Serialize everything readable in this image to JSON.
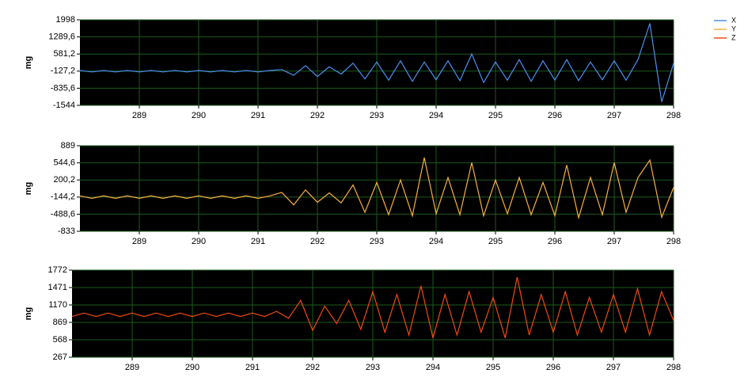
{
  "chart_data": [
    {
      "type": "line",
      "y_label": "mg",
      "x": [
        288.0,
        288.2,
        288.4,
        288.6,
        288.8,
        289.0,
        289.2,
        289.4,
        289.6,
        289.8,
        290.0,
        290.2,
        290.4,
        290.6,
        290.8,
        291.0,
        291.2,
        291.4,
        291.6,
        291.8,
        292.0,
        292.2,
        292.4,
        292.6,
        292.8,
        293.0,
        293.2,
        293.4,
        293.6,
        293.8,
        294.0,
        294.2,
        294.4,
        294.6,
        294.8,
        295.0,
        295.2,
        295.4,
        295.6,
        295.8,
        296.0,
        296.2,
        296.4,
        296.6,
        296.8,
        297.0,
        297.2,
        297.4,
        297.6,
        297.8,
        298.0
      ],
      "series": [
        {
          "name": "X",
          "color": "#4a8ff0",
          "values": [
            -100,
            -160,
            -100,
            -160,
            -100,
            -160,
            -100,
            -160,
            -100,
            -160,
            -100,
            -160,
            -100,
            -160,
            -100,
            -160,
            -100,
            -60,
            -300,
            100,
            -350,
            50,
            -250,
            200,
            -450,
            250,
            -500,
            300,
            -550,
            250,
            -480,
            300,
            -520,
            580,
            -600,
            250,
            -500,
            350,
            -550,
            300,
            -500,
            350,
            -520,
            250,
            -480,
            300,
            -500,
            350,
            1850,
            -1400,
            200
          ]
        }
      ],
      "xlim": [
        288,
        298
      ],
      "xticks": [
        289,
        290,
        291,
        292,
        293,
        294,
        295,
        296,
        297,
        298
      ],
      "ylim": [
        -1544,
        1998
      ],
      "yticks": [
        -1544,
        {
          "value": -835.6,
          "label": "-835,6"
        },
        {
          "value": -127.2,
          "label": "-127,2"
        },
        {
          "value": 581.2,
          "label": "581,2"
        },
        {
          "value": 1289.6,
          "label": "1289,6"
        },
        1998
      ],
      "grid": true
    },
    {
      "type": "line",
      "y_label": "mg",
      "x": [
        288.0,
        288.2,
        288.4,
        288.6,
        288.8,
        289.0,
        289.2,
        289.4,
        289.6,
        289.8,
        290.0,
        290.2,
        290.4,
        290.6,
        290.8,
        291.0,
        291.2,
        291.4,
        291.6,
        291.8,
        292.0,
        292.2,
        292.4,
        292.6,
        292.8,
        293.0,
        293.2,
        293.4,
        293.6,
        293.8,
        294.0,
        294.2,
        294.4,
        294.6,
        294.8,
        295.0,
        295.2,
        295.4,
        295.6,
        295.8,
        296.0,
        296.2,
        296.4,
        296.6,
        296.8,
        297.0,
        297.2,
        297.4,
        297.6,
        297.8,
        298.0
      ],
      "series": [
        {
          "name": "Y",
          "color": "#f8b040",
          "values": [
            -120,
            -170,
            -120,
            -170,
            -120,
            -170,
            -120,
            -170,
            -120,
            -170,
            -120,
            -170,
            -120,
            -170,
            -120,
            -170,
            -120,
            -50,
            -300,
            0,
            -250,
            -60,
            -260,
            100,
            -450,
            150,
            -500,
            200,
            -520,
            650,
            -480,
            250,
            -500,
            550,
            -520,
            200,
            -480,
            250,
            -500,
            150,
            -520,
            500,
            -560,
            250,
            -500,
            550,
            -450,
            250,
            600,
            -550,
            50
          ]
        }
      ],
      "xlim": [
        288,
        298
      ],
      "xticks": [
        289,
        290,
        291,
        292,
        293,
        294,
        295,
        296,
        297,
        298
      ],
      "ylim": [
        -833,
        889
      ],
      "yticks": [
        -833,
        {
          "value": -488.6,
          "label": "-488,6"
        },
        {
          "value": -144.2,
          "label": "-144,2"
        },
        {
          "value": 200.2,
          "label": "200,2"
        },
        {
          "value": 544.6,
          "label": "544,6"
        },
        889
      ],
      "grid": true
    },
    {
      "type": "line",
      "y_label": "mg",
      "x": [
        288.0,
        288.2,
        288.4,
        288.6,
        288.8,
        289.0,
        289.2,
        289.4,
        289.6,
        289.8,
        290.0,
        290.2,
        290.4,
        290.6,
        290.8,
        291.0,
        291.2,
        291.4,
        291.6,
        291.8,
        292.0,
        292.2,
        292.4,
        292.6,
        292.8,
        293.0,
        293.2,
        293.4,
        293.6,
        293.8,
        294.0,
        294.2,
        294.4,
        294.6,
        294.8,
        295.0,
        295.2,
        295.4,
        295.6,
        295.8,
        296.0,
        296.2,
        296.4,
        296.6,
        296.8,
        297.0,
        297.2,
        297.4,
        297.6,
        297.8,
        298.0
      ],
      "series": [
        {
          "name": "Z",
          "color": "#f04a10",
          "values": [
            970,
            1030,
            970,
            1030,
            970,
            1030,
            970,
            1030,
            970,
            1030,
            970,
            1030,
            970,
            1030,
            970,
            1030,
            970,
            1060,
            940,
            1250,
            730,
            1150,
            850,
            1250,
            750,
            1400,
            700,
            1350,
            650,
            1500,
            600,
            1350,
            650,
            1400,
            700,
            1300,
            600,
            1650,
            650,
            1350,
            700,
            1400,
            650,
            1300,
            700,
            1350,
            700,
            1450,
            650,
            1400,
            900
          ]
        }
      ],
      "xlim": [
        288,
        298
      ],
      "xticks": [
        289,
        290,
        291,
        292,
        293,
        294,
        295,
        296,
        297,
        298
      ],
      "ylim": [
        267,
        1772
      ],
      "yticks": [
        267,
        568,
        869,
        1170,
        1471,
        1772
      ],
      "grid": true
    }
  ]
}
